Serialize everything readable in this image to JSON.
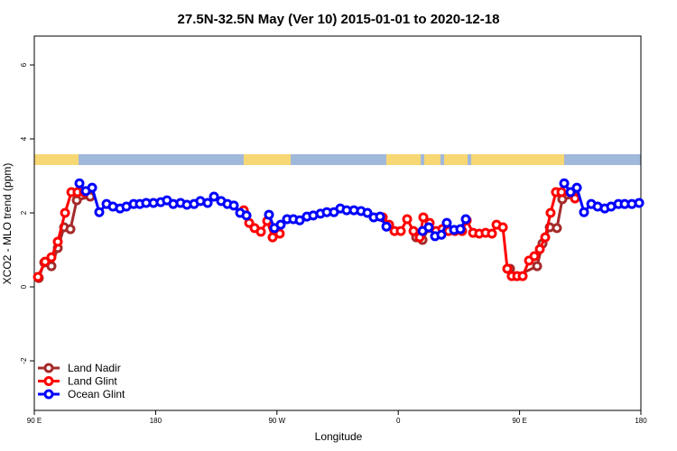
{
  "chart_data": {
    "type": "line",
    "title": "27.5N-32.5N May (Ver 10)   2015-01-01 to 2020-12-18",
    "x_label": "Longitude",
    "y_label": "XCO2 - MLO trend (ppm)",
    "xlim": [
      90,
      540
    ],
    "ylim": [
      -3.34,
      6.78
    ],
    "xticks": [
      {
        "value": 90,
        "label": "90 E"
      },
      180,
      {
        "value": 270,
        "label": "90 W"
      },
      {
        "value": 360,
        "label": "0"
      },
      {
        "value": 450,
        "label": "90 E"
      },
      {
        "value": 540,
        "label": "180"
      }
    ],
    "yticks": [
      -2,
      0,
      2,
      4,
      6
    ],
    "legend": "bottom-left",
    "series": [
      {
        "name": "Land Nadir",
        "color": "#a52a2a",
        "x": [
          93.3,
          97.4,
          102.7,
          107.4,
          112.1,
          116.8,
          121.5,
          131.5,
          null,
          373.3,
          378,
          382.6,
          null,
          442.9,
          447.6,
          463,
          467,
          472.4,
          477.7,
          481.7,
          491.1
        ],
        "values": [
          0.24,
          0.66,
          0.56,
          1.05,
          1.61,
          1.56,
          2.34,
          2.44,
          null,
          1.34,
          1.27,
          1.59,
          null,
          0.49,
          0.29,
          0.56,
          1.17,
          1.61,
          1.59,
          2.37,
          2.44
        ]
      },
      {
        "name": "Land Glint",
        "color": "#ff0000",
        "x": [
          92.7,
          98,
          102.7,
          107.4,
          112.8,
          117.5,
          122.1,
          126.8,
          null,
          245.4,
          249.4,
          253.4,
          258.1,
          262.8,
          266.8,
          272.1,
          null,
          348.5,
          353.2,
          357.2,
          361.9,
          366.6,
          371.3,
          375.9,
          378.6,
          383.3,
          388,
          392.7,
          397.4,
          402.1,
          407.4,
          410.8,
          415.5,
          420.1,
          424.8,
          429.5,
          432.9,
          437.6,
          440.9,
          444.2,
          448.3,
          452.3,
          457,
          461,
          465,
          469,
          473,
          477,
          481.1,
          491.1
        ],
        "values": [
          0.27,
          0.68,
          0.8,
          1.22,
          2.0,
          2.56,
          2.56,
          2.56,
          null,
          2.07,
          1.73,
          1.59,
          1.49,
          1.78,
          1.34,
          1.44,
          null,
          1.88,
          1.68,
          1.51,
          1.51,
          1.83,
          1.51,
          1.34,
          1.88,
          1.73,
          1.51,
          1.56,
          1.51,
          1.51,
          1.51,
          1.8,
          1.46,
          1.44,
          1.46,
          1.44,
          1.68,
          1.61,
          0.49,
          0.29,
          0.29,
          0.29,
          0.71,
          0.83,
          1.02,
          1.34,
          2.0,
          2.56,
          2.56,
          2.39
        ]
      },
      {
        "name": "Ocean Glint",
        "color": "#0000ff",
        "x": [
          123.5,
          128.2,
          132.9,
          138.2,
          143.6,
          148.3,
          153.6,
          158.3,
          163.7,
          168.3,
          173,
          178.4,
          183.8,
          188.4,
          193.1,
          198.5,
          203.2,
          208.5,
          213.2,
          218.6,
          223.3,
          228.6,
          233.3,
          238,
          242.7,
          247.4,
          null,
          264.1,
          268.1,
          272.8,
          277.5,
          282.2,
          286.9,
          292.2,
          296.9,
          302.3,
          307,
          312.3,
          317,
          321.7,
          327.1,
          332.4,
          337.1,
          341.8,
          346.5,
          351.2,
          null,
          378,
          382.6,
          387.3,
          392,
          396,
          401.4,
          406.1,
          410.1,
          null,
          483.1,
          487.8,
          492.5,
          497.8,
          503.2,
          507.9,
          513.2,
          517.9,
          523.3,
          528,
          533.3,
          538.7
        ],
        "values": [
          2.8,
          2.59,
          2.68,
          2.02,
          2.24,
          2.17,
          2.12,
          2.17,
          2.24,
          2.24,
          2.27,
          2.27,
          2.29,
          2.34,
          2.24,
          2.27,
          2.22,
          2.24,
          2.32,
          2.27,
          2.44,
          2.32,
          2.24,
          2.2,
          2.0,
          1.93,
          null,
          1.95,
          1.59,
          1.68,
          1.83,
          1.83,
          1.8,
          1.9,
          1.93,
          1.98,
          2.02,
          2.02,
          2.12,
          2.07,
          2.07,
          2.05,
          2.0,
          1.88,
          1.9,
          1.63,
          null,
          1.51,
          1.61,
          1.37,
          1.41,
          1.73,
          1.54,
          1.56,
          1.83,
          null,
          2.8,
          2.56,
          2.68,
          2.02,
          2.24,
          2.17,
          2.12,
          2.17,
          2.24,
          2.24,
          2.24,
          2.27
        ]
      }
    ]
  }
}
